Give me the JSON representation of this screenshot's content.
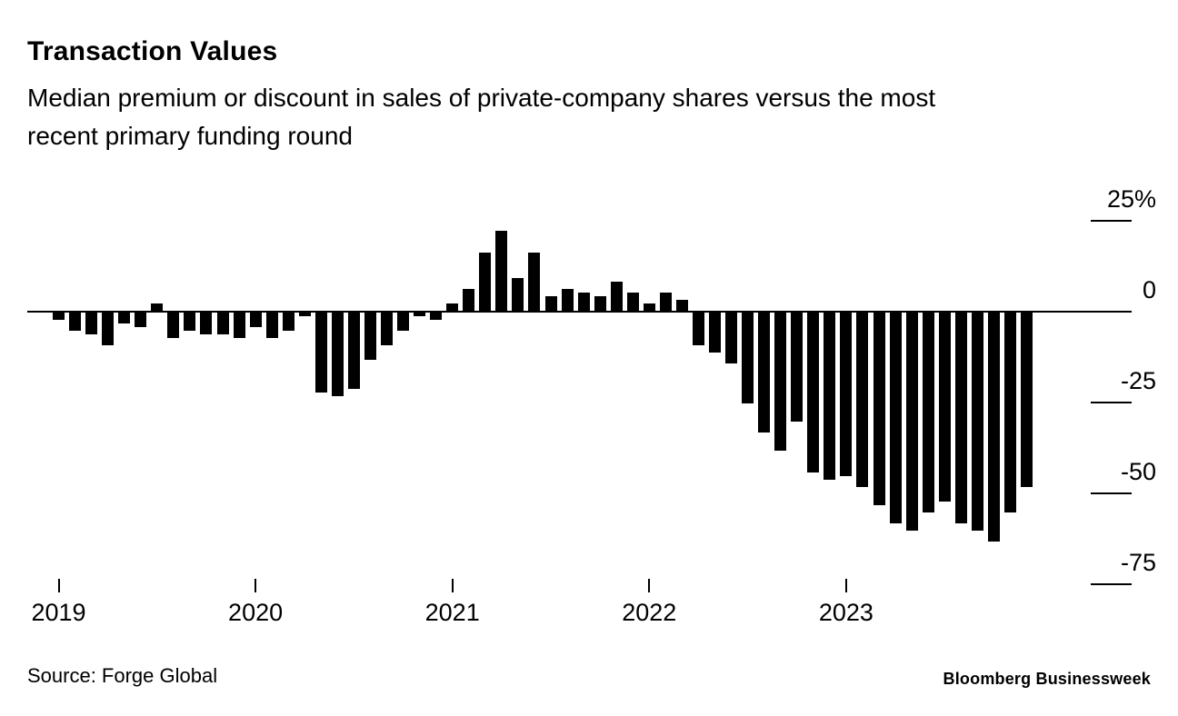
{
  "header": {
    "title": "Transaction Values",
    "subtitle": "Median premium or discount in sales of private-company shares versus the most recent primary funding round"
  },
  "footer": {
    "source": "Source: Forge Global",
    "brand": "Bloomberg Businessweek"
  },
  "chart_data": {
    "type": "bar",
    "title": "Transaction Values",
    "subtitle": "Median premium or discount in sales of private-company shares versus the most recent primary funding round",
    "unit": "%",
    "baseline": 0,
    "ylim": [
      -80,
      25
    ],
    "grid": "off",
    "legend": "none",
    "bar_color": "#000000",
    "background": "#ffffff",
    "y_ticks": [
      {
        "label": "25%",
        "value": 25
      },
      {
        "label": "0",
        "value": 0
      },
      {
        "label": "-25",
        "value": -25
      },
      {
        "label": "-50",
        "value": -50
      },
      {
        "label": "-75",
        "value": -75
      }
    ],
    "x_ticks": [
      "2019",
      "2020",
      "2021",
      "2022",
      "2023"
    ],
    "x": [
      "2019-01",
      "2019-02",
      "2019-03",
      "2019-04",
      "2019-05",
      "2019-06",
      "2019-07",
      "2019-08",
      "2019-09",
      "2019-10",
      "2019-11",
      "2019-12",
      "2020-01",
      "2020-02",
      "2020-03",
      "2020-04",
      "2020-05",
      "2020-06",
      "2020-07",
      "2020-08",
      "2020-09",
      "2020-10",
      "2020-11",
      "2020-12",
      "2021-01",
      "2021-02",
      "2021-03",
      "2021-04",
      "2021-05",
      "2021-06",
      "2021-07",
      "2021-08",
      "2021-09",
      "2021-10",
      "2021-11",
      "2021-12",
      "2022-01",
      "2022-02",
      "2022-03",
      "2022-04",
      "2022-05",
      "2022-06",
      "2022-07",
      "2022-08",
      "2022-09",
      "2022-10",
      "2022-11",
      "2022-12",
      "2023-01",
      "2023-02",
      "2023-03",
      "2023-04",
      "2023-05",
      "2023-06",
      "2023-07",
      "2023-08",
      "2023-09",
      "2023-10",
      "2023-11",
      "2023-12"
    ],
    "values": [
      -2,
      -5,
      -6,
      -9,
      -3,
      -4,
      2,
      -7,
      -5,
      -6,
      -6,
      -7,
      -4,
      -7,
      -5,
      -1,
      -22,
      -23,
      -21,
      -13,
      -9,
      -5,
      -1,
      -2,
      2,
      6,
      16,
      22,
      9,
      16,
      4,
      6,
      5,
      4,
      8,
      5,
      2,
      5,
      3,
      -9,
      -11,
      -14,
      -25,
      -33,
      -38,
      -30,
      -44,
      -46,
      -45,
      -48,
      -53,
      -58,
      -60,
      -55,
      -52,
      -58,
      -60,
      -63,
      -55,
      -48
    ]
  }
}
